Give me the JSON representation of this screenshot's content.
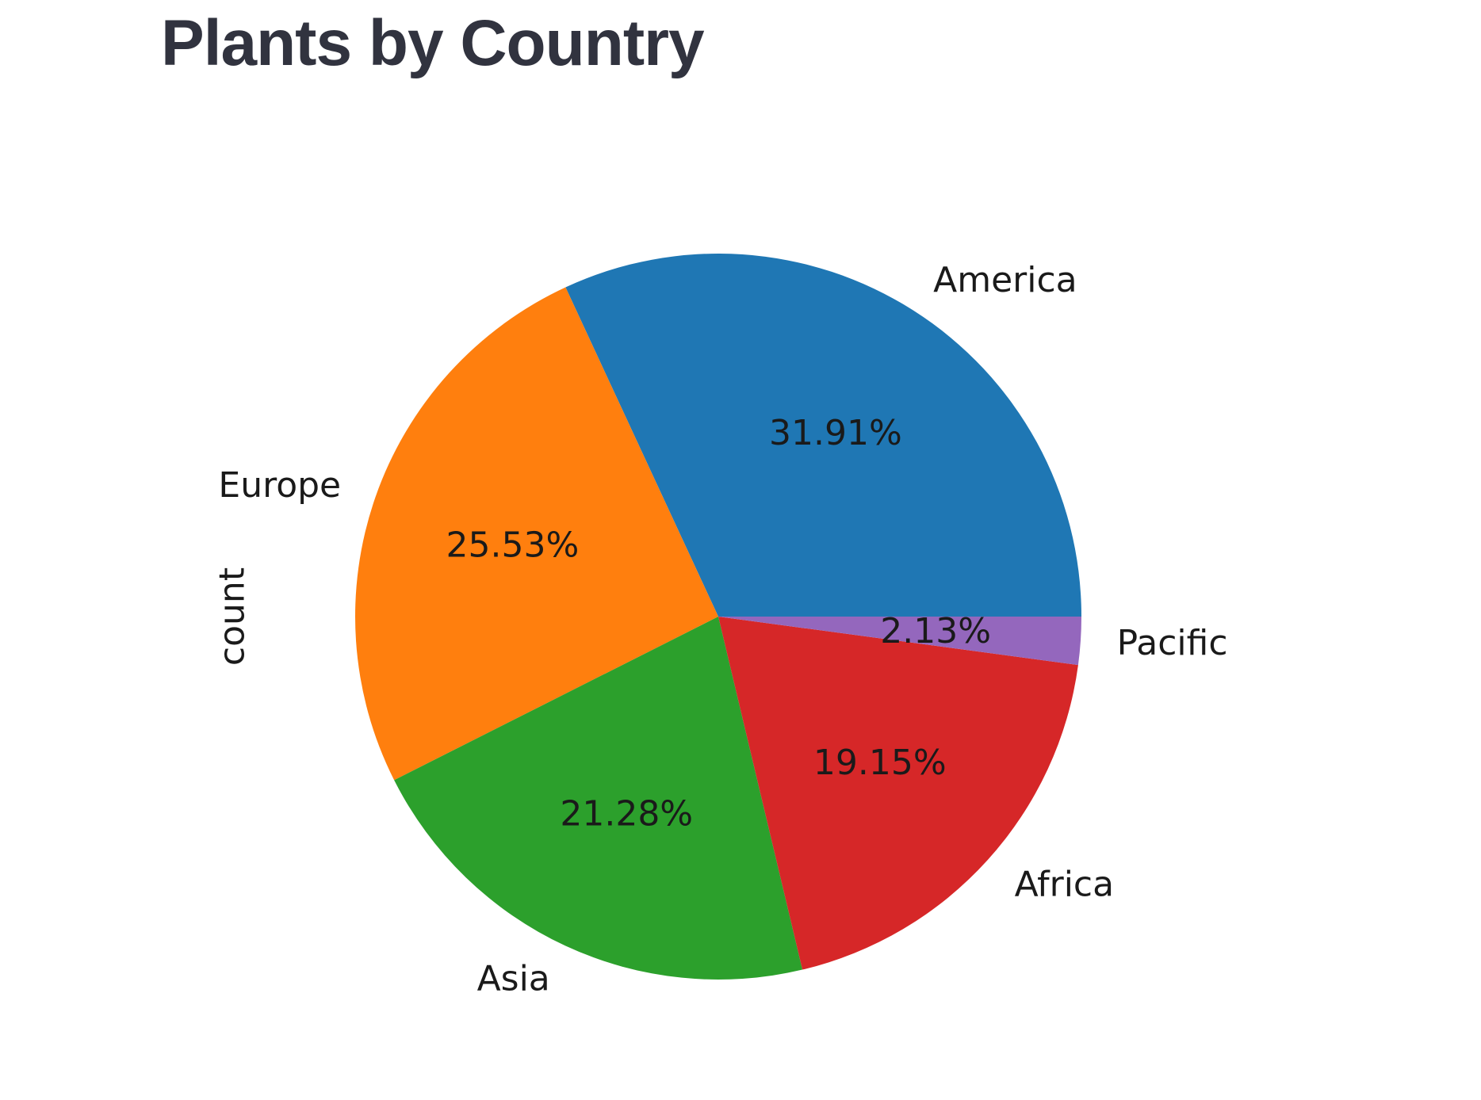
{
  "header": {
    "title": "Plants by Country"
  },
  "chart_data": {
    "type": "pie",
    "title": "",
    "ylabel": "count",
    "start_angle": 0,
    "direction": "counterclockwise",
    "slices": [
      {
        "label": "America",
        "value": 31.91,
        "pct_text": "31.91%",
        "color": "#1f77b4"
      },
      {
        "label": "Europe",
        "value": 25.53,
        "pct_text": "25.53%",
        "color": "#ff7f0e"
      },
      {
        "label": "Asia",
        "value": 21.28,
        "pct_text": "21.28%",
        "color": "#2ca02c"
      },
      {
        "label": "Africa",
        "value": 19.15,
        "pct_text": "19.15%",
        "color": "#d62728"
      },
      {
        "label": "Pacific",
        "value": 2.13,
        "pct_text": "2.13%",
        "color": "#9467bd"
      }
    ]
  }
}
